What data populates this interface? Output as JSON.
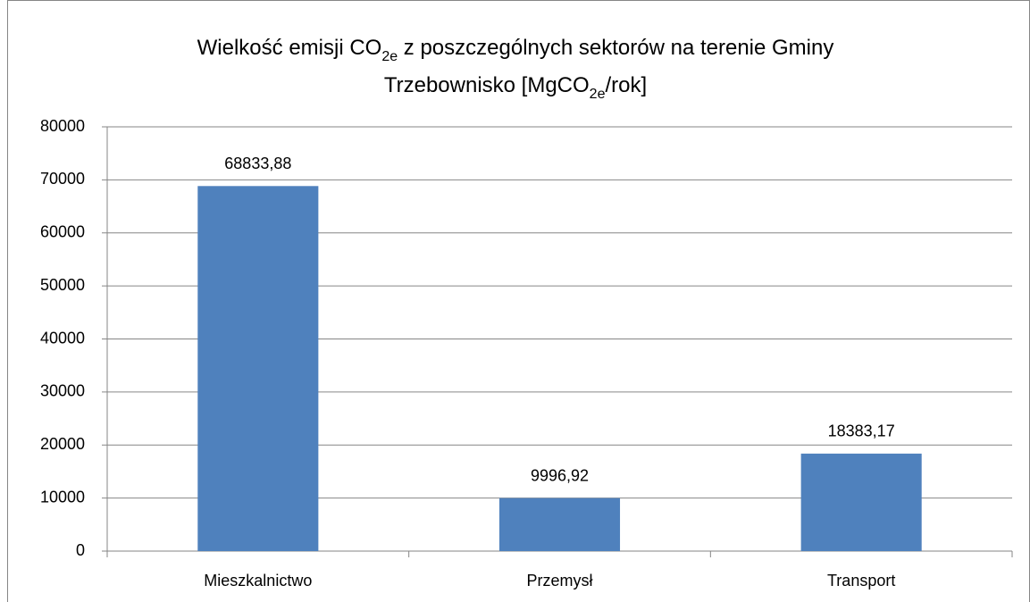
{
  "chart_data": {
    "type": "bar",
    "title": [
      [
        "Wielkość emisji CO",
        "2e",
        " z poszczególnych sektorów na terenie Gminy"
      ],
      [
        "Trzebownisko [MgCO",
        "2e",
        "/rok]"
      ]
    ],
    "categories": [
      "Mieszkalnictwo",
      "Przemysł",
      "Transport"
    ],
    "values": [
      68833.88,
      9996.92,
      18383.17
    ],
    "value_labels": [
      "68833,88",
      "9996,92",
      "18383,17"
    ],
    "color": "#4f81bd",
    "ylim": [
      0,
      80000
    ],
    "yticks": [
      0,
      10000,
      20000,
      30000,
      40000,
      50000,
      60000,
      70000,
      80000
    ],
    "grid": true
  }
}
